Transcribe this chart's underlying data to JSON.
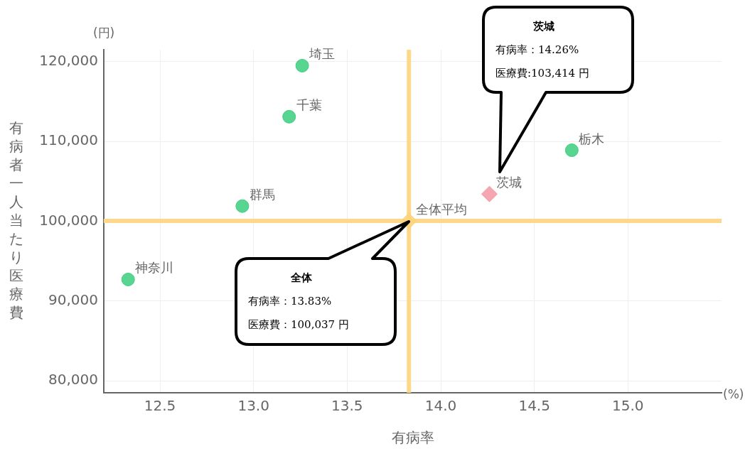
{
  "chart_data": {
    "type": "scatter",
    "xlabel": "有病率",
    "ylabel": "有病者一人当たり医療費",
    "xlim": [
      12.2,
      15.5
    ],
    "ylim": [
      78500,
      121500
    ],
    "xticks": [
      12.5,
      {
        "value": 13,
        "label": "13.0"
      },
      13.5,
      {
        "value": 14,
        "label": "14.0"
      },
      14.5,
      {
        "value": 15,
        "label": "15.0"
      }
    ],
    "yticks": [
      {
        "value": 80000,
        "label": "80,000"
      },
      {
        "value": 90000,
        "label": "90,000"
      },
      {
        "value": 100000,
        "label": "100,000"
      },
      {
        "value": 110000,
        "label": "110,000"
      },
      {
        "value": 120000,
        "label": "120,000"
      }
    ],
    "grid": true,
    "legend": false,
    "ref_lines": [
      {
        "axis": "x",
        "value": 13.83,
        "color": "#fdd78a"
      },
      {
        "axis": "y",
        "value": 100037,
        "color": "#fdd78a"
      }
    ],
    "series": [
      {
        "name": "埼玉",
        "color": "#3ecf7f",
        "marker": "circle",
        "x": [
          13.26
        ],
        "values": [
          119500
        ]
      },
      {
        "name": "千葉",
        "color": "#3ecf7f",
        "marker": "circle",
        "x": [
          13.19
        ],
        "values": [
          113100
        ]
      },
      {
        "name": "栃木",
        "color": "#3ecf7f",
        "marker": "circle",
        "x": [
          14.7
        ],
        "values": [
          108900
        ]
      },
      {
        "name": "群馬",
        "color": "#3ecf7f",
        "marker": "circle",
        "x": [
          12.94
        ],
        "values": [
          101900
        ]
      },
      {
        "name": "神奈川",
        "color": "#3ecf7f",
        "marker": "circle",
        "x": [
          12.33
        ],
        "values": [
          92700
        ]
      },
      {
        "name": "茨城",
        "color": "#f29aa5",
        "marker": "diamond",
        "x": [
          14.26
        ],
        "values": [
          103414
        ]
      },
      {
        "name": "全体平均",
        "color": "#fdd27a",
        "marker": "diamond",
        "x": [
          13.83
        ],
        "values": [
          100037
        ]
      }
    ],
    "annotations": [
      "茨城",
      "有病率：14.26%",
      "医療費:103,414 円",
      "全体",
      "有病率：13.83%",
      "医療費：100,037 円",
      "(円)",
      "(%)"
    ]
  }
}
